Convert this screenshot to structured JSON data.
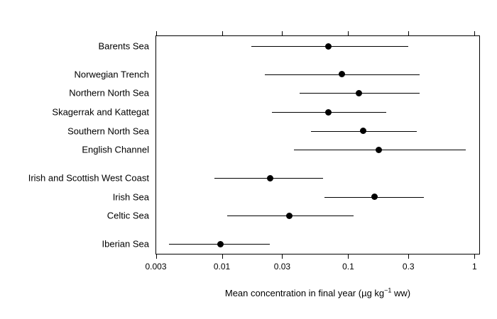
{
  "chart_data": {
    "type": "scatter",
    "subtype": "dot-plot-with-error-bars",
    "title": "",
    "xlabel_prefix": "Mean concentration in final year (µg kg",
    "xlabel_sup": "−1",
    "xlabel_suffix": " ww)",
    "xlabel_full": "Mean concentration in final year (µg kg−1 ww)",
    "x_scale": "log",
    "xlim": [
      0.00298,
      1.105
    ],
    "x_ticks": [
      0.003,
      0.01,
      0.03,
      0.1,
      0.3,
      1
    ],
    "x_tick_labels": [
      "0.003",
      "0.01",
      "0.03",
      "0.1",
      "0.3",
      "1"
    ],
    "grid": "off",
    "legend": "none",
    "rows": [
      {
        "label": "Barents Sea",
        "mean": 0.07,
        "lo": 0.017,
        "hi": 0.3,
        "slot": 0
      },
      {
        "label": "Norwegian Trench",
        "mean": 0.089,
        "lo": 0.022,
        "hi": 0.37,
        "slot": 1.5
      },
      {
        "label": "Northern North Sea",
        "mean": 0.121,
        "lo": 0.041,
        "hi": 0.37,
        "slot": 2.5
      },
      {
        "label": "Skagerrak and Kattegat",
        "mean": 0.07,
        "lo": 0.025,
        "hi": 0.2,
        "slot": 3.5
      },
      {
        "label": "Southern North Sea",
        "mean": 0.131,
        "lo": 0.051,
        "hi": 0.35,
        "slot": 4.5
      },
      {
        "label": "English Channel",
        "mean": 0.174,
        "lo": 0.037,
        "hi": 0.85,
        "slot": 5.5
      },
      {
        "label": "Irish and Scottish West Coast",
        "mean": 0.024,
        "lo": 0.0087,
        "hi": 0.063,
        "slot": 7
      },
      {
        "label": "Irish Sea",
        "mean": 0.161,
        "lo": 0.065,
        "hi": 0.4,
        "slot": 8
      },
      {
        "label": "Celtic Sea",
        "mean": 0.034,
        "lo": 0.011,
        "hi": 0.11,
        "slot": 9
      },
      {
        "label": "Iberian Sea",
        "mean": 0.0097,
        "lo": 0.0038,
        "hi": 0.024,
        "slot": 10.5
      }
    ],
    "max_slot": 10.5,
    "colors": {
      "point": "#000000",
      "line": "#000000",
      "axis": "#000000",
      "text": "#000000",
      "background": "#ffffff"
    }
  }
}
